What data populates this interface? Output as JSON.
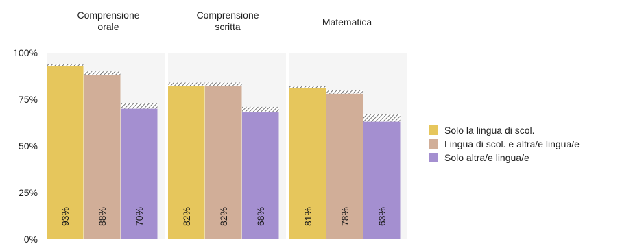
{
  "chart_data": {
    "type": "bar",
    "panels": [
      "Comprensione\norale",
      "Comprensione\nscritta",
      "Matematica"
    ],
    "categories": [
      "Comprensione orale",
      "Comprensione scritta",
      "Matematica"
    ],
    "series": [
      {
        "name": "Solo la lingua di scol.",
        "color": "#E6C65C",
        "values": [
          93,
          82,
          81
        ],
        "upper": [
          94,
          84,
          82
        ]
      },
      {
        "name": "Lingua di scol. e altra/e lingua/e",
        "color": "#D1AE98",
        "values": [
          88,
          82,
          78
        ],
        "upper": [
          90,
          84,
          80
        ]
      },
      {
        "name": "Solo altra/e lingua/e",
        "color": "#A48FD0",
        "values": [
          70,
          68,
          63
        ],
        "upper": [
          73,
          71,
          67
        ]
      }
    ],
    "data_labels": [
      [
        "93%",
        "88%",
        "70%"
      ],
      [
        "82%",
        "82%",
        "68%"
      ],
      [
        "81%",
        "78%",
        "63%"
      ]
    ],
    "y_ticks": [
      0,
      25,
      50,
      75,
      100
    ],
    "y_tick_labels": [
      "0%",
      "25%",
      "50%",
      "75%",
      "100%"
    ],
    "ylim": [
      0,
      100
    ],
    "xlabel": "",
    "ylabel": "",
    "grid": false,
    "legend_position": "right"
  }
}
